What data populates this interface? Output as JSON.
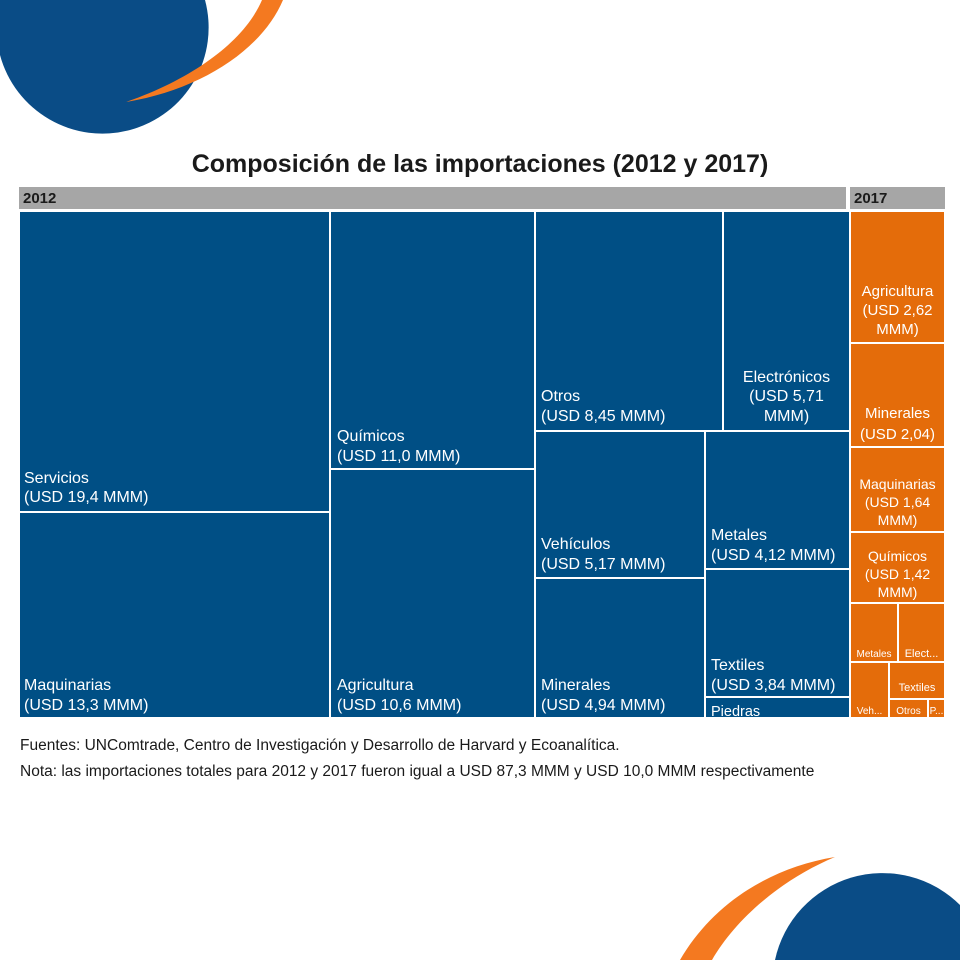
{
  "chart_data": {
    "type": "treemap",
    "title": "Composición de las importaciones (2012 y 2017)",
    "panels": [
      {
        "name": "2012",
        "color": "#004f85",
        "items": [
          {
            "label": "Servicios",
            "value_label": "(USD 19,4 MMM)",
            "value": 19.4
          },
          {
            "label": "Maquinarias",
            "value_label": "(USD 13,3 MMM)",
            "value": 13.3
          },
          {
            "label": "Químicos",
            "value_label": "(USD 11,0 MMM)",
            "value": 11.0
          },
          {
            "label": "Agricultura",
            "value_label": "(USD 10,6 MMM)",
            "value": 10.6
          },
          {
            "label": "Otros",
            "value_label": "(USD 8,45 MMM)",
            "value": 8.45
          },
          {
            "label": "Electrónicos",
            "value_label": "(USD 5,71 MMM)",
            "value": 5.71
          },
          {
            "label": "Vehículos",
            "value_label": "(USD 5,17 MMM)",
            "value": 5.17
          },
          {
            "label": "Minerales",
            "value_label": "(USD 4,94 MMM)",
            "value": 4.94
          },
          {
            "label": "Metales",
            "value_label": "(USD 4,12 MMM)",
            "value": 4.12
          },
          {
            "label": "Textiles",
            "value_label": "(USD 3,84 MMM)",
            "value": 3.84
          },
          {
            "label": "Piedras",
            "value_label": "",
            "value": null
          }
        ]
      },
      {
        "name": "2017",
        "color": "#e46c0a",
        "items": [
          {
            "label": "Agricultura",
            "value_label": "(USD 2,62 MMM)",
            "value": 2.62
          },
          {
            "label": "Minerales",
            "value_label": "(USD 2,04)",
            "value": 2.04
          },
          {
            "label": "Maquinarias",
            "value_label": "(USD 1,64 MMM)",
            "value": 1.64
          },
          {
            "label": "Químicos",
            "value_label": "(USD 1,42 MMM)",
            "value": 1.42
          },
          {
            "label": "Metales",
            "value_label": "",
            "value": null
          },
          {
            "label": "Elect...",
            "value_label": "",
            "value": null
          },
          {
            "label": "Textiles",
            "value_label": "",
            "value": null
          },
          {
            "label": "Veh...",
            "value_label": "",
            "value": null
          },
          {
            "label": "Otros",
            "value_label": "",
            "value": null
          },
          {
            "label": "P...",
            "value_label": "",
            "value": null
          }
        ]
      }
    ]
  },
  "footer": {
    "source": "Fuentes: UNComtrade, Centro de Investigación y Desarrollo de Harvard y Ecoanalítica.",
    "note": "Nota: las importaciones totales para 2012 y 2017 fueron igual a USD 87,3 MMM y USD 10,0 MMM respectivamente"
  }
}
